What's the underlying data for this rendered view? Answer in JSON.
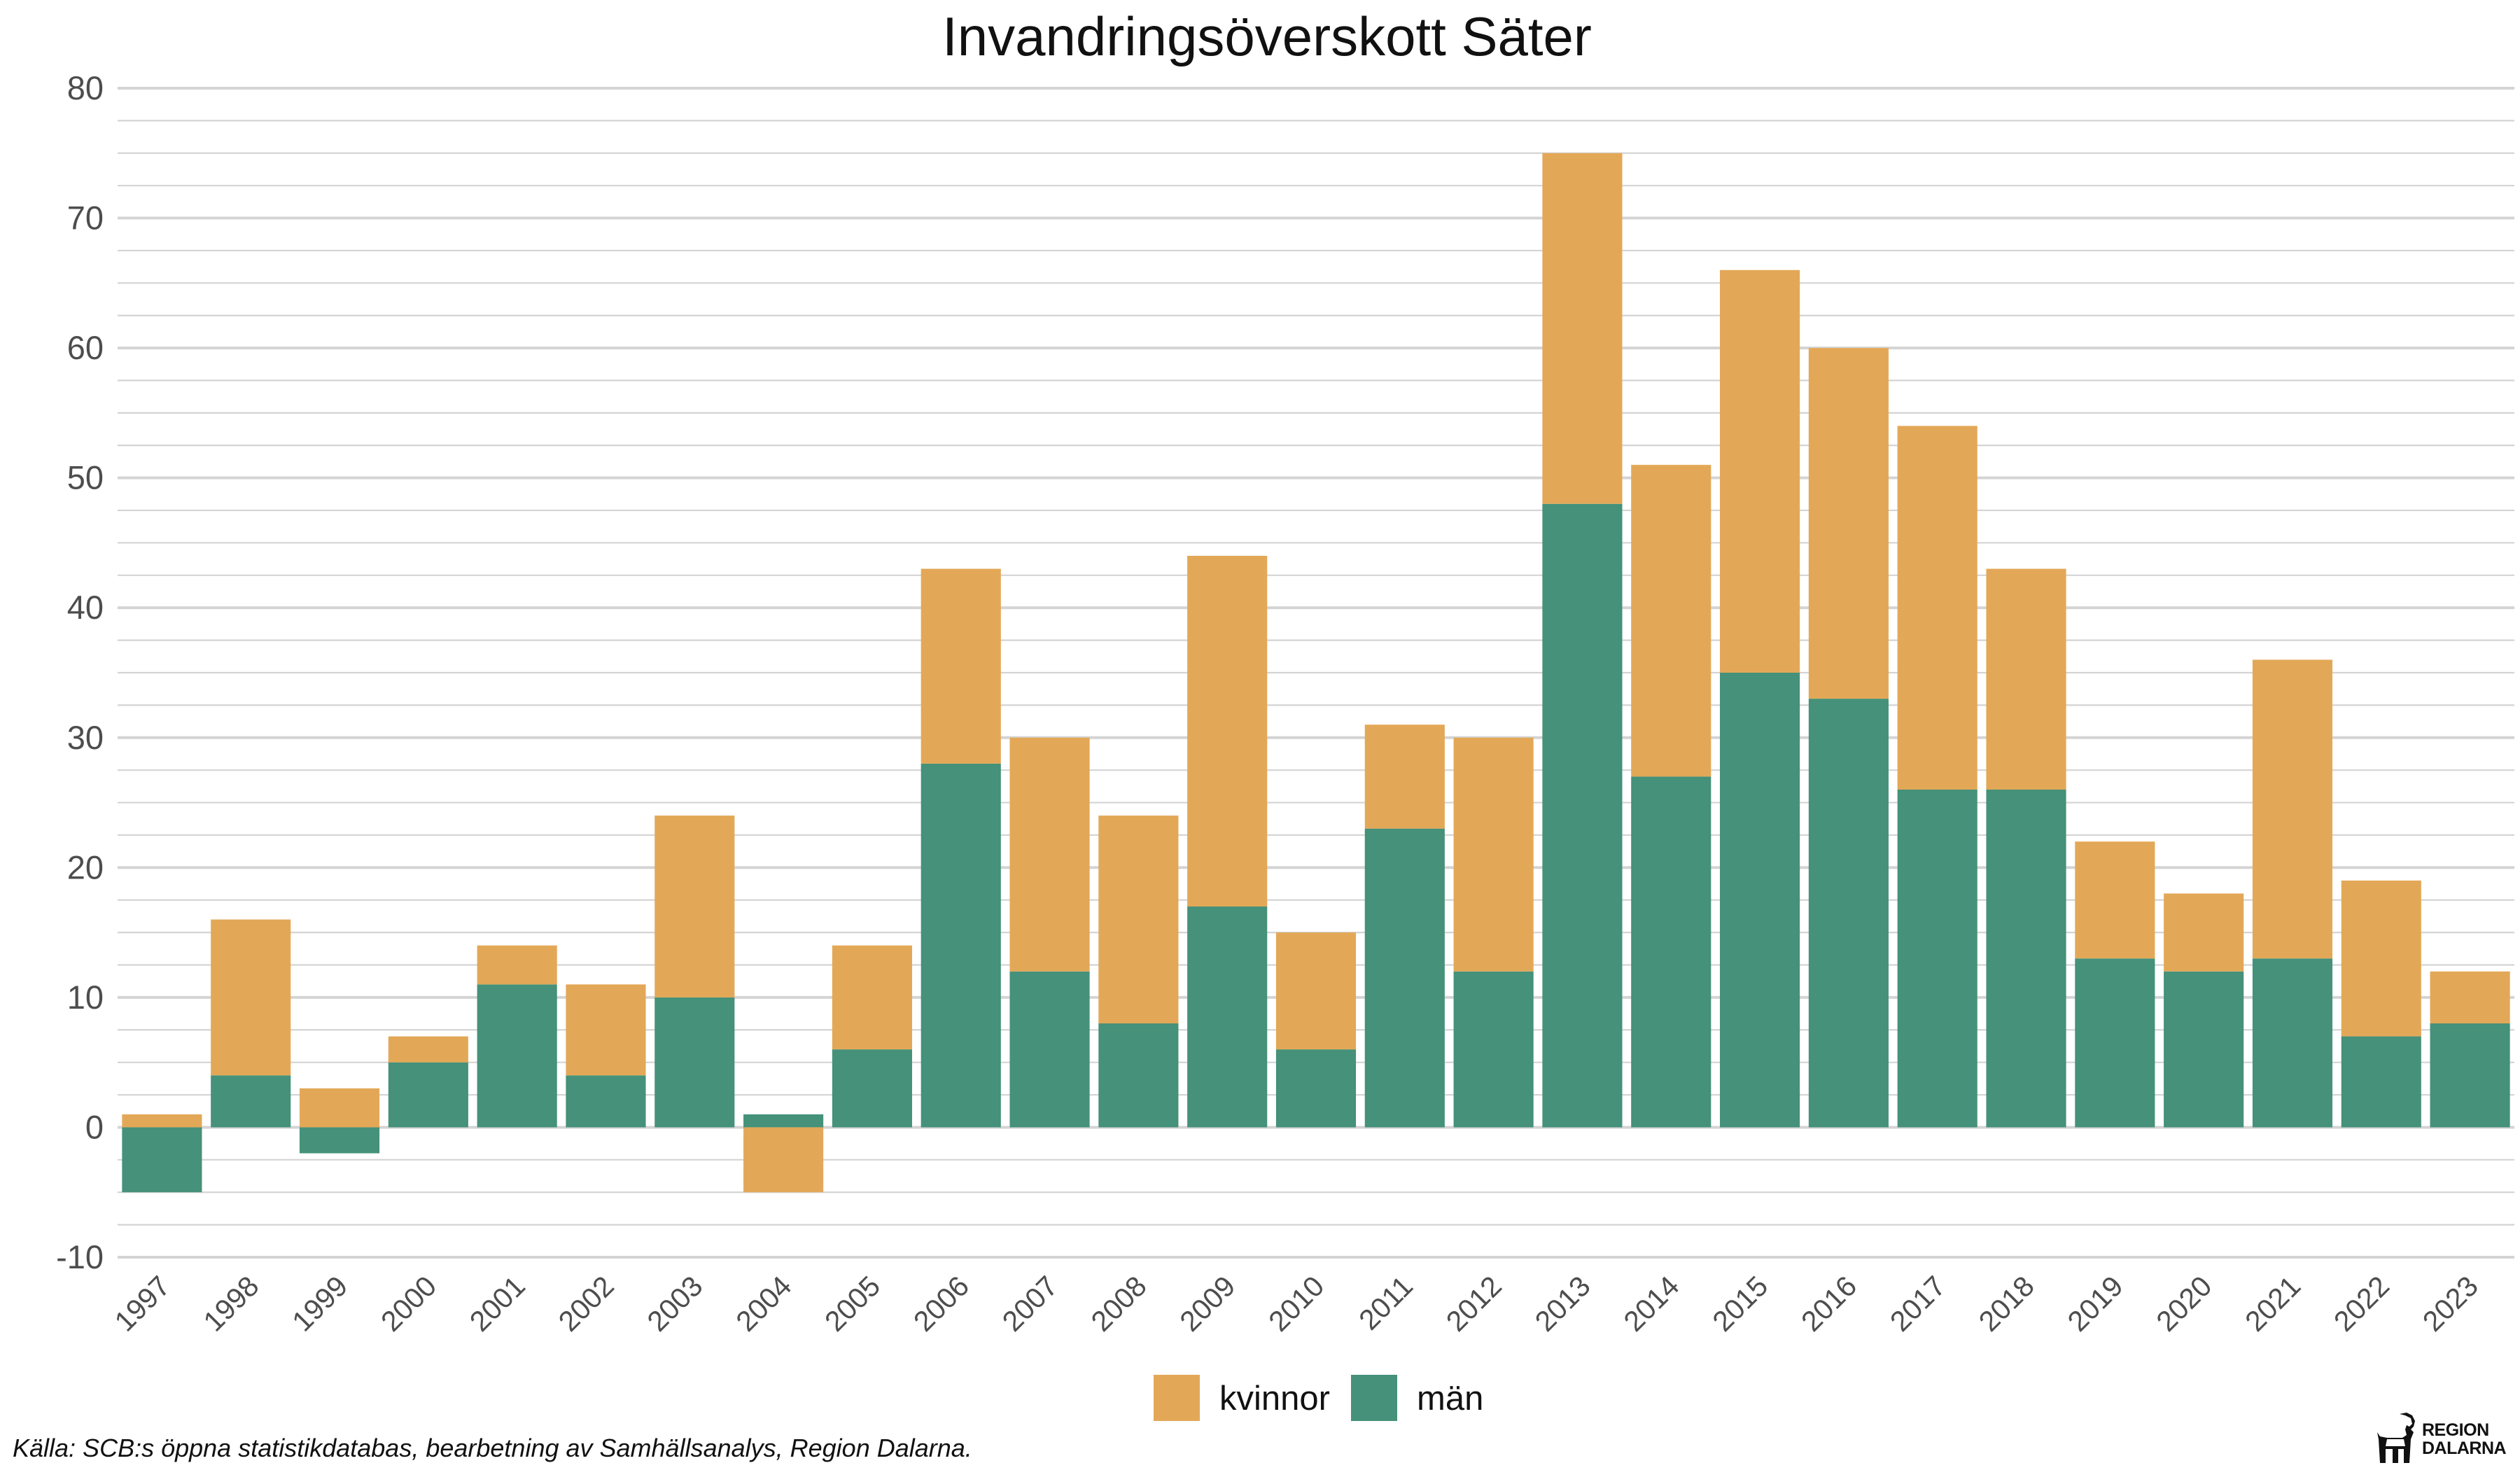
{
  "chart_data": {
    "type": "bar",
    "stacked": true,
    "title": "Invandringsöverskott Säter",
    "categories": [
      "1997",
      "1998",
      "1999",
      "2000",
      "2001",
      "2002",
      "2003",
      "2004",
      "2005",
      "2006",
      "2007",
      "2008",
      "2009",
      "2010",
      "2011",
      "2012",
      "2013",
      "2014",
      "2015",
      "2016",
      "2017",
      "2018",
      "2019",
      "2020",
      "2021",
      "2022",
      "2023"
    ],
    "series": [
      {
        "name": "män",
        "color": "#45917a",
        "values": [
          -5,
          4,
          -2,
          5,
          11,
          4,
          10,
          1,
          6,
          28,
          12,
          8,
          17,
          6,
          23,
          12,
          48,
          27,
          35,
          33,
          26,
          26,
          13,
          12,
          13,
          7,
          8
        ]
      },
      {
        "name": "kvinnor",
        "color": "#e3a857",
        "values": [
          1,
          12,
          3,
          2,
          3,
          7,
          14,
          -5,
          8,
          15,
          18,
          16,
          27,
          9,
          8,
          18,
          27,
          24,
          31,
          27,
          28,
          17,
          9,
          6,
          23,
          12,
          4
        ]
      }
    ],
    "ylim": [
      -10,
      80
    ],
    "yticks": [
      -10,
      0,
      10,
      20,
      30,
      40,
      50,
      60,
      70,
      80
    ],
    "legend_position": "bottom",
    "legend_order": [
      "kvinnor",
      "män"
    ],
    "grid": true
  },
  "caption": "Källa: SCB:s öppna statistikdatabas, bearbetning av Samhällsanalys, Region Dalarna.",
  "logo": {
    "line1": "REGION",
    "line2": "DALARNA"
  }
}
